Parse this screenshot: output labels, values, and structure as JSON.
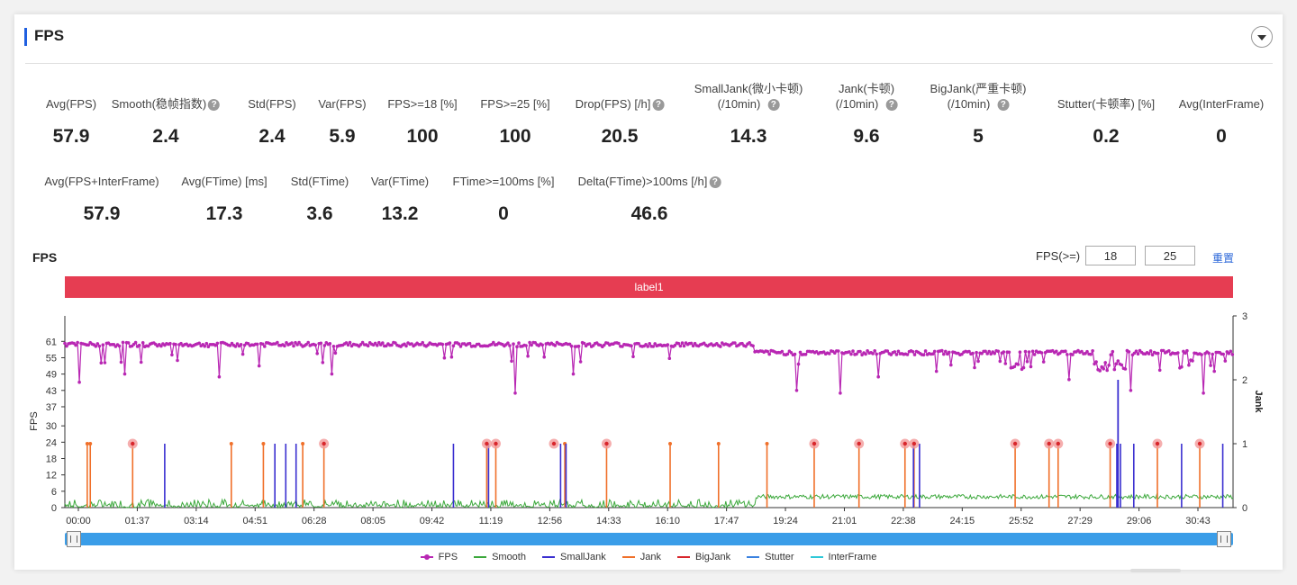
{
  "header": {
    "title": "FPS"
  },
  "metrics_row1": [
    {
      "label": "Avg(FPS)",
      "value": "57.9"
    },
    {
      "label": "Smooth(稳帧指数)",
      "value": "2.4",
      "help": true
    },
    {
      "label": "Std(FPS)",
      "value": "2.4"
    },
    {
      "label": "Var(FPS)",
      "value": "5.9"
    },
    {
      "label": "FPS>=18 [%]",
      "value": "100"
    },
    {
      "label": "FPS>=25 [%]",
      "value": "100"
    },
    {
      "label": "Drop(FPS) [/h]",
      "value": "20.5",
      "help": true
    },
    {
      "label": "SmallJank(微小卡顿)",
      "label2": "(/10min)",
      "value": "14.3",
      "help": true
    },
    {
      "label": "Jank(卡顿)",
      "label2": "(/10min)",
      "value": "9.6",
      "help": true
    },
    {
      "label": "BigJank(严重卡顿)",
      "label2": "(/10min)",
      "value": "5",
      "help": true
    },
    {
      "label": "Stutter(卡顿率) [%]",
      "value": "0.2"
    },
    {
      "label": "Avg(InterFrame)",
      "value": "0"
    }
  ],
  "metrics_row2": [
    {
      "label": "Avg(FPS+InterFrame)",
      "value": "57.9"
    },
    {
      "label": "Avg(FTime) [ms]",
      "value": "17.3"
    },
    {
      "label": "Std(FTime)",
      "value": "3.6"
    },
    {
      "label": "Var(FTime)",
      "value": "13.2"
    },
    {
      "label": "FTime>=100ms [%]",
      "value": "0"
    },
    {
      "label": "Delta(FTime)>100ms [/h]",
      "value": "46.6",
      "help": true
    }
  ],
  "chart_section": {
    "title": "FPS",
    "threshold_label": "FPS(>=)",
    "threshold_1": "18",
    "threshold_2": "25",
    "reset_label": "重置",
    "band_label": "label1"
  },
  "chart_data": {
    "type": "line",
    "x_axis": {
      "ticks": [
        "00:00",
        "01:37",
        "03:14",
        "04:51",
        "06:28",
        "08:05",
        "09:42",
        "11:19",
        "12:56",
        "14:33",
        "16:10",
        "17:47",
        "19:24",
        "21:01",
        "22:38",
        "24:15",
        "25:52",
        "27:29",
        "29:06",
        "30:43"
      ]
    },
    "y_axis_left": {
      "label": "FPS",
      "ticks": [
        0,
        6,
        12,
        18,
        24,
        30,
        37,
        43,
        49,
        55,
        61
      ]
    },
    "y_axis_right": {
      "label": "Jank",
      "ticks": [
        0,
        1,
        2,
        3
      ],
      "ylim": [
        0,
        3
      ]
    },
    "x_range_seconds": [
      0,
      1930
    ],
    "fps_segments": [
      {
        "t_start": 0,
        "t_end": 1140,
        "baseline": 60
      },
      {
        "t_start": 1140,
        "t_end": 1930,
        "baseline": 57
      }
    ],
    "fps_dips": [
      {
        "t": 25,
        "fps": 46
      },
      {
        "t": 100,
        "fps": 49
      },
      {
        "t": 255,
        "fps": 48
      },
      {
        "t": 320,
        "fps": 52
      },
      {
        "t": 440,
        "fps": 49
      },
      {
        "t": 745,
        "fps": 42
      },
      {
        "t": 840,
        "fps": 49
      },
      {
        "t": 1210,
        "fps": 43
      },
      {
        "t": 1280,
        "fps": 42
      },
      {
        "t": 1345,
        "fps": 48
      },
      {
        "t": 1440,
        "fps": 50
      },
      {
        "t": 1660,
        "fps": 47
      },
      {
        "t": 1760,
        "fps": 43
      },
      {
        "t": 1880,
        "fps": 42
      }
    ],
    "smooth_series": [
      {
        "t_start": 0,
        "t_end": 1140,
        "level": 1.5
      },
      {
        "t_start": 1140,
        "t_end": 1930,
        "level": 4
      }
    ],
    "jank_events": [
      37,
      42,
      112,
      275,
      328,
      393,
      428,
      697,
      712,
      826,
      895,
      1000,
      1080,
      1160,
      1238,
      1312,
      1388,
      1403,
      1570,
      1626,
      1641,
      1727,
      1805,
      1875
    ],
    "bigjank_events": [
      112,
      428,
      697,
      712,
      808,
      895,
      1238,
      1312,
      1388,
      1403,
      1570,
      1626,
      1641,
      1727,
      1805,
      1875
    ],
    "smalljank_events": [
      165,
      347,
      365,
      382,
      642,
      700,
      819,
      828,
      1402,
      1412,
      1738,
      1744,
      1766,
      1845,
      1913
    ],
    "smalljank_tall_events": [
      {
        "t": 1740,
        "jank": 2
      }
    ],
    "series": [
      {
        "name": "FPS",
        "color": "#b827b3"
      },
      {
        "name": "Smooth",
        "color": "#3ba83b"
      },
      {
        "name": "SmallJank",
        "color": "#3a2fd0"
      },
      {
        "name": "Jank",
        "color": "#f0702a"
      },
      {
        "name": "BigJank",
        "color": "#d8262c"
      },
      {
        "name": "Stutter",
        "color": "#3b82e0"
      },
      {
        "name": "InterFrame",
        "color": "#2ec8d8"
      }
    ]
  }
}
